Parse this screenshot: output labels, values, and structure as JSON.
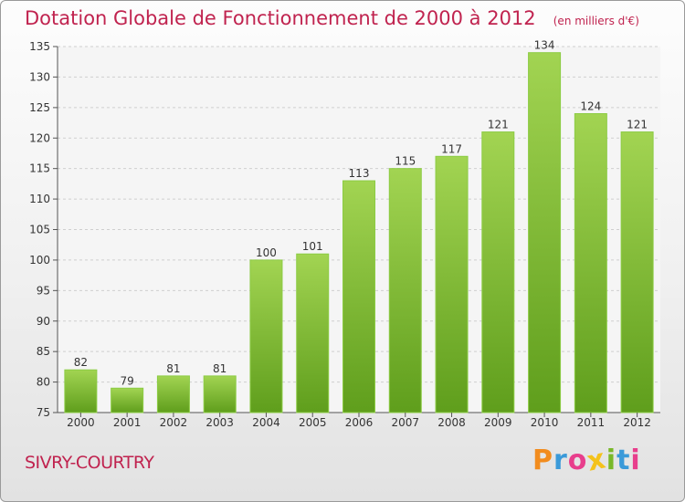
{
  "chart_data": {
    "type": "bar",
    "title": "Dotation Globale de Fonctionnement de 2000 à 2012",
    "subtitle": "(en milliers d'€)",
    "categories": [
      "2000",
      "2001",
      "2002",
      "2003",
      "2004",
      "2005",
      "2006",
      "2007",
      "2008",
      "2009",
      "2010",
      "2011",
      "2012"
    ],
    "values": [
      82,
      79,
      81,
      81,
      100,
      101,
      113,
      115,
      117,
      121,
      134,
      124,
      121
    ],
    "ylim": [
      75,
      135
    ],
    "yticks": [
      75,
      80,
      85,
      90,
      95,
      100,
      105,
      110,
      115,
      120,
      125,
      130,
      135
    ],
    "grid": true,
    "bar_color": "#7cc034",
    "title_color": "#c0234f"
  },
  "footer": {
    "commune": "SIVRY-COURTRY",
    "logo_text": "Proxiti"
  },
  "colors": {
    "logo": [
      "#f28c1e",
      "#3a9ad9",
      "#e83e8c",
      "#f4c21b",
      "#79b829",
      "#3a9ad9",
      "#e83e8c"
    ]
  }
}
